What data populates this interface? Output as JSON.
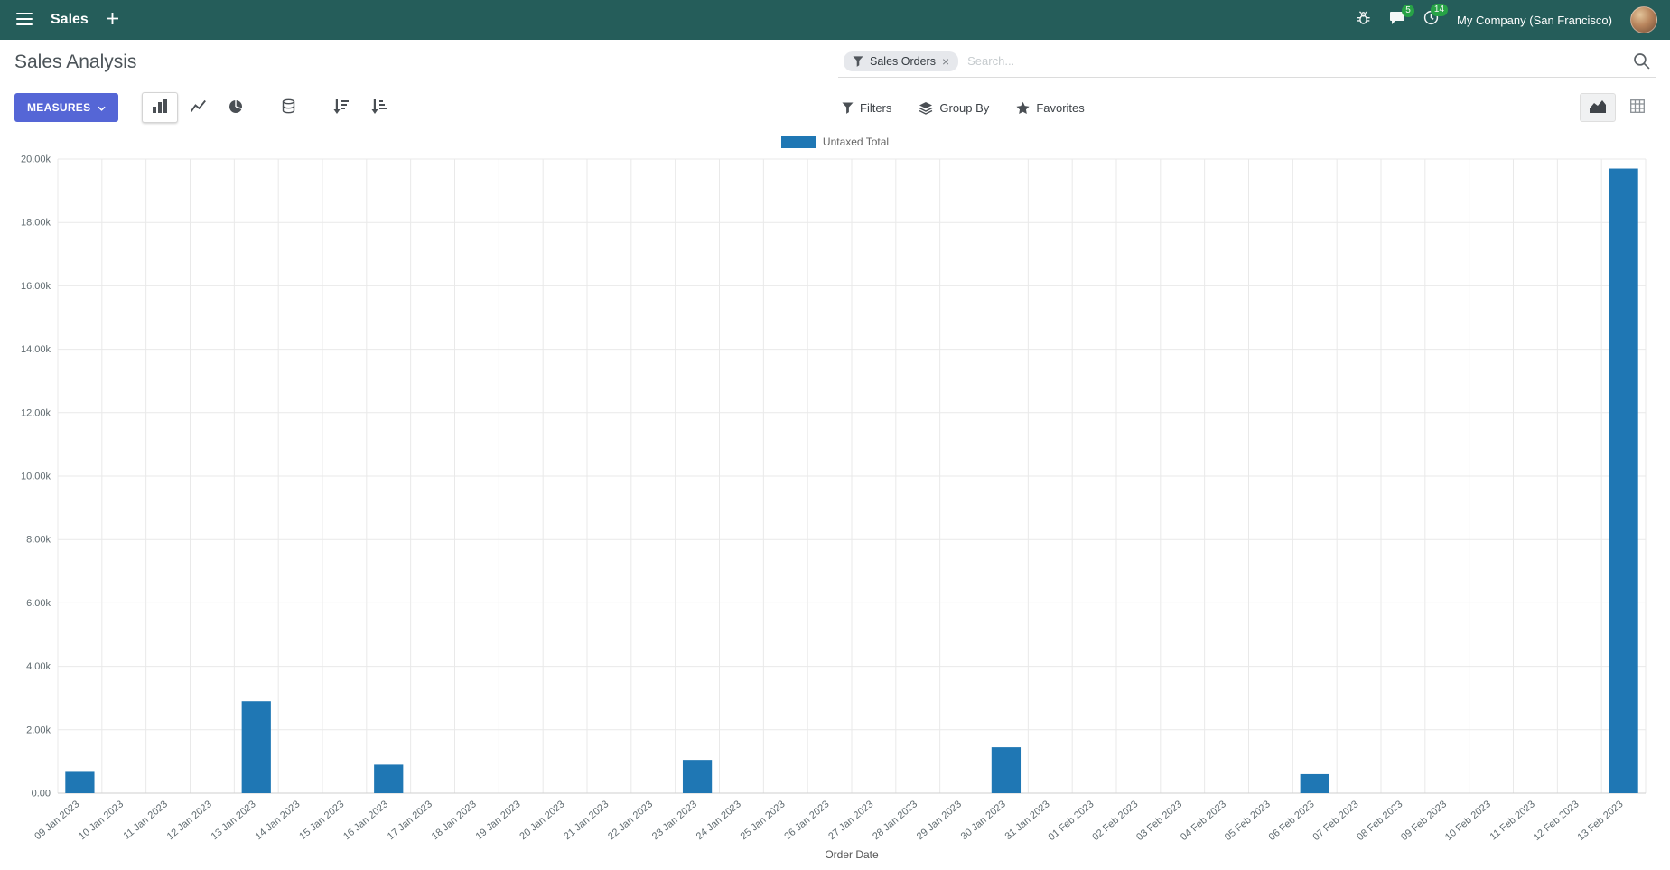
{
  "navbar": {
    "app_title": "Sales",
    "messages_badge": "5",
    "activities_badge": "14",
    "company": "My Company (San Francisco)",
    "bg_color": "#255d5a",
    "badge_color": "#28a745"
  },
  "control_panel": {
    "title": "Sales Analysis",
    "search": {
      "facet_label": "Sales Orders",
      "facet_remove": "×",
      "placeholder": "Search..."
    },
    "measures_label": "MEASURES",
    "filters_label": "Filters",
    "group_by_label": "Group By",
    "favorites_label": "Favorites",
    "measures_color": "#5566d6"
  },
  "chart_data": {
    "type": "bar",
    "title": "",
    "xlabel": "Order Date",
    "ylabel": "",
    "legend": [
      {
        "label": "Untaxed Total",
        "color": "#1f77b4"
      }
    ],
    "legend_position": "top",
    "grid": true,
    "ylim": [
      0,
      20000
    ],
    "y_tick_values": [
      0,
      2000,
      4000,
      6000,
      8000,
      10000,
      12000,
      14000,
      16000,
      18000,
      20000
    ],
    "y_tick_labels": [
      "0.00",
      "2.00k",
      "4.00k",
      "6.00k",
      "8.00k",
      "10.00k",
      "12.00k",
      "14.00k",
      "16.00k",
      "18.00k",
      "20.00k"
    ],
    "categories": [
      "09 Jan 2023",
      "10 Jan 2023",
      "11 Jan 2023",
      "12 Jan 2023",
      "13 Jan 2023",
      "14 Jan 2023",
      "15 Jan 2023",
      "16 Jan 2023",
      "17 Jan 2023",
      "18 Jan 2023",
      "19 Jan 2023",
      "20 Jan 2023",
      "21 Jan 2023",
      "22 Jan 2023",
      "23 Jan 2023",
      "24 Jan 2023",
      "25 Jan 2023",
      "26 Jan 2023",
      "27 Jan 2023",
      "28 Jan 2023",
      "29 Jan 2023",
      "30 Jan 2023",
      "31 Jan 2023",
      "01 Feb 2023",
      "02 Feb 2023",
      "03 Feb 2023",
      "04 Feb 2023",
      "05 Feb 2023",
      "06 Feb 2023",
      "07 Feb 2023",
      "08 Feb 2023",
      "09 Feb 2023",
      "10 Feb 2023",
      "11 Feb 2023",
      "12 Feb 2023",
      "13 Feb 2023"
    ],
    "values": [
      700,
      0,
      0,
      0,
      2900,
      0,
      0,
      900,
      0,
      0,
      0,
      0,
      0,
      0,
      1050,
      0,
      0,
      0,
      0,
      0,
      0,
      1450,
      0,
      0,
      0,
      0,
      0,
      0,
      600,
      0,
      0,
      0,
      0,
      0,
      0,
      19700
    ]
  }
}
